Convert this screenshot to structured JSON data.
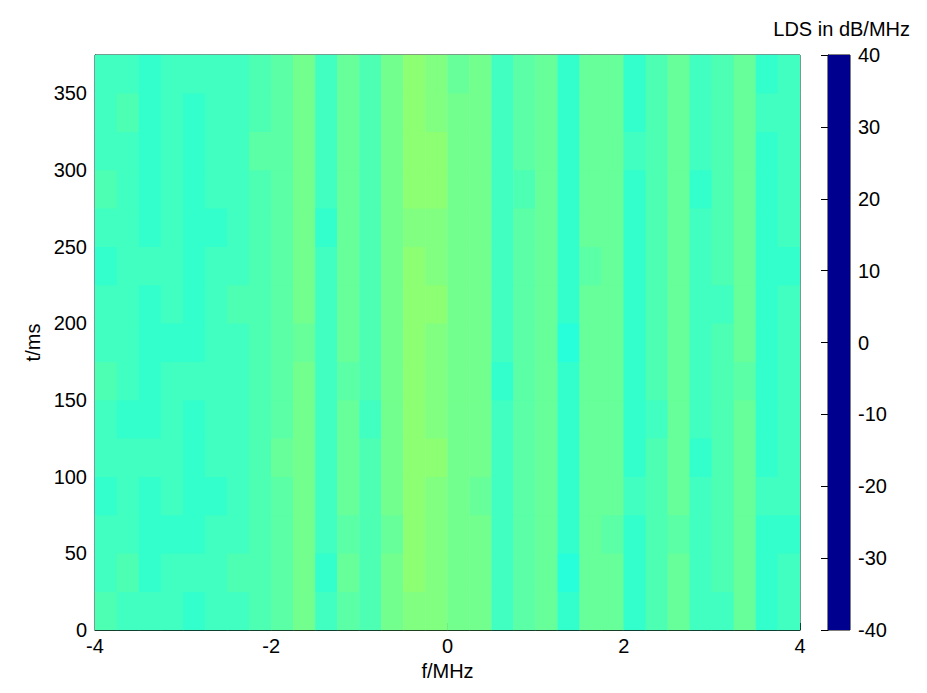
{
  "chart_data": {
    "type": "heatmap",
    "x_label": "f/MHz",
    "y_label": "t/ms",
    "xlim": [
      -4,
      4
    ],
    "xticks": [
      -4,
      -2,
      0,
      2,
      4
    ],
    "ylim": [
      0,
      375
    ],
    "yticks": [
      0,
      50,
      100,
      150,
      200,
      250,
      300,
      350
    ],
    "x": [
      -3.875,
      -3.625,
      -3.375,
      -3.125,
      -2.875,
      -2.625,
      -2.375,
      -2.125,
      -1.875,
      -1.625,
      -1.375,
      -1.125,
      -0.875,
      -0.625,
      -0.375,
      -0.125,
      0.125,
      0.375,
      0.625,
      0.875,
      1.125,
      1.375,
      1.625,
      1.875,
      2.125,
      2.375,
      2.625,
      2.875,
      3.125,
      3.375,
      3.625,
      3.875
    ],
    "y": [
      12.5,
      37.5,
      62.5,
      87.5,
      112.5,
      137.5,
      162.5,
      187.5,
      212.5,
      237.5,
      262.5,
      287.5,
      312.5,
      337.5,
      362.5
    ],
    "values": [
      [
        -4,
        -5,
        -5,
        -5,
        -6,
        -5,
        -5,
        -4,
        -3,
        -1,
        -5,
        -3,
        -4,
        -1,
        0,
        0,
        -1,
        -1,
        -5,
        -3,
        -2,
        -6,
        -2,
        -2,
        -6,
        -4,
        -2,
        -5,
        -5,
        -2,
        -6,
        -5
      ],
      [
        -5,
        -4,
        -6,
        -5,
        -5,
        -5,
        -4,
        -4,
        -3,
        -1,
        -6,
        -2,
        -4,
        -1,
        1,
        0,
        -1,
        -1,
        -5,
        -3,
        -2,
        -7,
        -2,
        -2,
        -6,
        -4,
        -2,
        -5,
        -4,
        -2,
        -6,
        -5
      ],
      [
        -5,
        -5,
        -6,
        -6,
        -6,
        -5,
        -5,
        -4,
        -3,
        -1,
        -5,
        -3,
        -4,
        -2,
        1,
        0,
        -1,
        -1,
        -5,
        -3,
        -2,
        -6,
        -2,
        -3,
        -6,
        -4,
        -3,
        -5,
        -4,
        -2,
        -6,
        -6
      ],
      [
        -6,
        -5,
        -6,
        -5,
        -6,
        -6,
        -5,
        -4,
        -3,
        -1,
        -5,
        -2,
        -4,
        -1,
        1,
        0,
        -1,
        -2,
        -5,
        -3,
        -2,
        -6,
        -2,
        -2,
        -5,
        -4,
        -2,
        -5,
        -4,
        -2,
        -5,
        -5
      ],
      [
        -5,
        -5,
        -5,
        -5,
        -6,
        -5,
        -5,
        -4,
        -2,
        -1,
        -5,
        -2,
        -4,
        -1,
        1,
        1,
        -1,
        -1,
        -5,
        -3,
        -2,
        -6,
        -2,
        -2,
        -6,
        -4,
        -2,
        -6,
        -4,
        -2,
        -6,
        -5
      ],
      [
        -5,
        -6,
        -6,
        -5,
        -6,
        -5,
        -5,
        -4,
        -3,
        -1,
        -5,
        -2,
        -5,
        -1,
        1,
        0,
        -1,
        -1,
        -5,
        -3,
        -2,
        -6,
        -2,
        -2,
        -6,
        -5,
        -2,
        -5,
        -4,
        -2,
        -6,
        -5
      ],
      [
        -4,
        -5,
        -6,
        -5,
        -5,
        -5,
        -5,
        -4,
        -3,
        -1,
        -5,
        -3,
        -4,
        -1,
        1,
        0,
        -1,
        -1,
        -6,
        -3,
        -2,
        -6,
        -2,
        -2,
        -6,
        -4,
        -2,
        -5,
        -4,
        -3,
        -6,
        -5
      ],
      [
        -5,
        -5,
        -6,
        -6,
        -6,
        -5,
        -5,
        -4,
        -3,
        -2,
        -5,
        -2,
        -4,
        -1,
        1,
        0,
        -1,
        -1,
        -5,
        -3,
        -2,
        -7,
        -2,
        -2,
        -6,
        -4,
        -2,
        -5,
        -4,
        -2,
        -6,
        -5
      ],
      [
        -5,
        -5,
        -6,
        -5,
        -6,
        -5,
        -4,
        -4,
        -3,
        -1,
        -5,
        -2,
        -4,
        -1,
        1,
        1,
        -1,
        -1,
        -5,
        -3,
        -2,
        -6,
        -2,
        -2,
        -6,
        -4,
        -2,
        -5,
        -5,
        -2,
        -6,
        -5
      ],
      [
        -6,
        -5,
        -5,
        -5,
        -6,
        -5,
        -5,
        -4,
        -3,
        -1,
        -5,
        -2,
        -4,
        -1,
        1,
        0,
        -1,
        -1,
        -5,
        -3,
        -2,
        -6,
        -3,
        -2,
        -6,
        -4,
        -2,
        -5,
        -4,
        -2,
        -6,
        -6
      ],
      [
        -5,
        -5,
        -6,
        -5,
        -6,
        -6,
        -5,
        -4,
        -3,
        -1,
        -6,
        -2,
        -4,
        -1,
        0,
        0,
        -1,
        -1,
        -5,
        -3,
        -2,
        -6,
        -2,
        -2,
        -6,
        -4,
        -2,
        -5,
        -4,
        -2,
        -6,
        -5
      ],
      [
        -4,
        -5,
        -6,
        -5,
        -6,
        -5,
        -5,
        -4,
        -3,
        -1,
        -5,
        -2,
        -4,
        -1,
        1,
        1,
        -1,
        -1,
        -5,
        -4,
        -2,
        -6,
        -2,
        -2,
        -6,
        -4,
        -2,
        -6,
        -4,
        -2,
        -6,
        -5
      ],
      [
        -5,
        -5,
        -6,
        -5,
        -6,
        -5,
        -5,
        -3,
        -3,
        -1,
        -5,
        -2,
        -4,
        -1,
        1,
        1,
        -1,
        -1,
        -5,
        -3,
        -2,
        -6,
        -2,
        -2,
        -5,
        -4,
        -2,
        -5,
        -4,
        -2,
        -6,
        -5
      ],
      [
        -5,
        -4,
        -6,
        -5,
        -6,
        -5,
        -5,
        -4,
        -3,
        -1,
        -5,
        -2,
        -4,
        -1,
        1,
        0,
        -1,
        -1,
        -5,
        -3,
        -2,
        -6,
        -2,
        -2,
        -6,
        -4,
        -2,
        -5,
        -4,
        -2,
        -5,
        -5
      ],
      [
        -5,
        -5,
        -6,
        -5,
        -5,
        -5,
        -5,
        -4,
        -3,
        -1,
        -5,
        -2,
        -4,
        -1,
        1,
        0,
        -2,
        -1,
        -5,
        -3,
        -2,
        -6,
        -2,
        -2,
        -6,
        -4,
        -2,
        -5,
        -4,
        -2,
        -6,
        -5
      ]
    ],
    "colorbar": {
      "label": "LDS in dB/MHz",
      "range": [
        -40,
        40
      ],
      "ticks": [
        -40,
        -30,
        -20,
        -10,
        0,
        10,
        20,
        30,
        40
      ]
    }
  }
}
